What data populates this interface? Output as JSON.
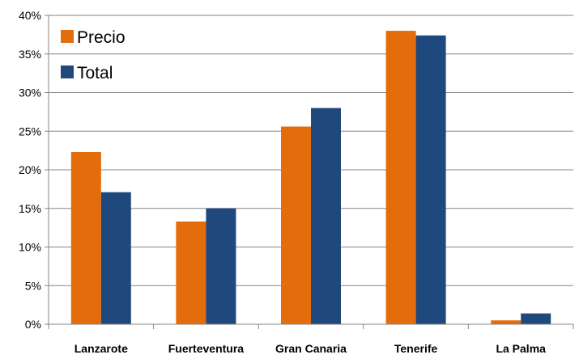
{
  "chart_data": {
    "type": "bar",
    "title": "",
    "xlabel": "",
    "ylabel": "",
    "categories": [
      "Lanzarote",
      "Fuerteventura",
      "Gran Canaria",
      "Tenerife",
      "La Palma"
    ],
    "series": [
      {
        "name": "Precio",
        "values": [
          22.3,
          13.3,
          25.6,
          38.0,
          0.5
        ],
        "color": "#E46C0A"
      },
      {
        "name": "Total",
        "values": [
          17.1,
          15.0,
          28.0,
          37.4,
          1.4
        ],
        "color": "#1F497D"
      }
    ],
    "ylim": [
      0,
      40
    ],
    "yticks": [
      "0%",
      "5%",
      "10%",
      "15%",
      "20%",
      "25%",
      "30%",
      "35%",
      "40%"
    ],
    "grid": true,
    "legend": "top-left"
  }
}
